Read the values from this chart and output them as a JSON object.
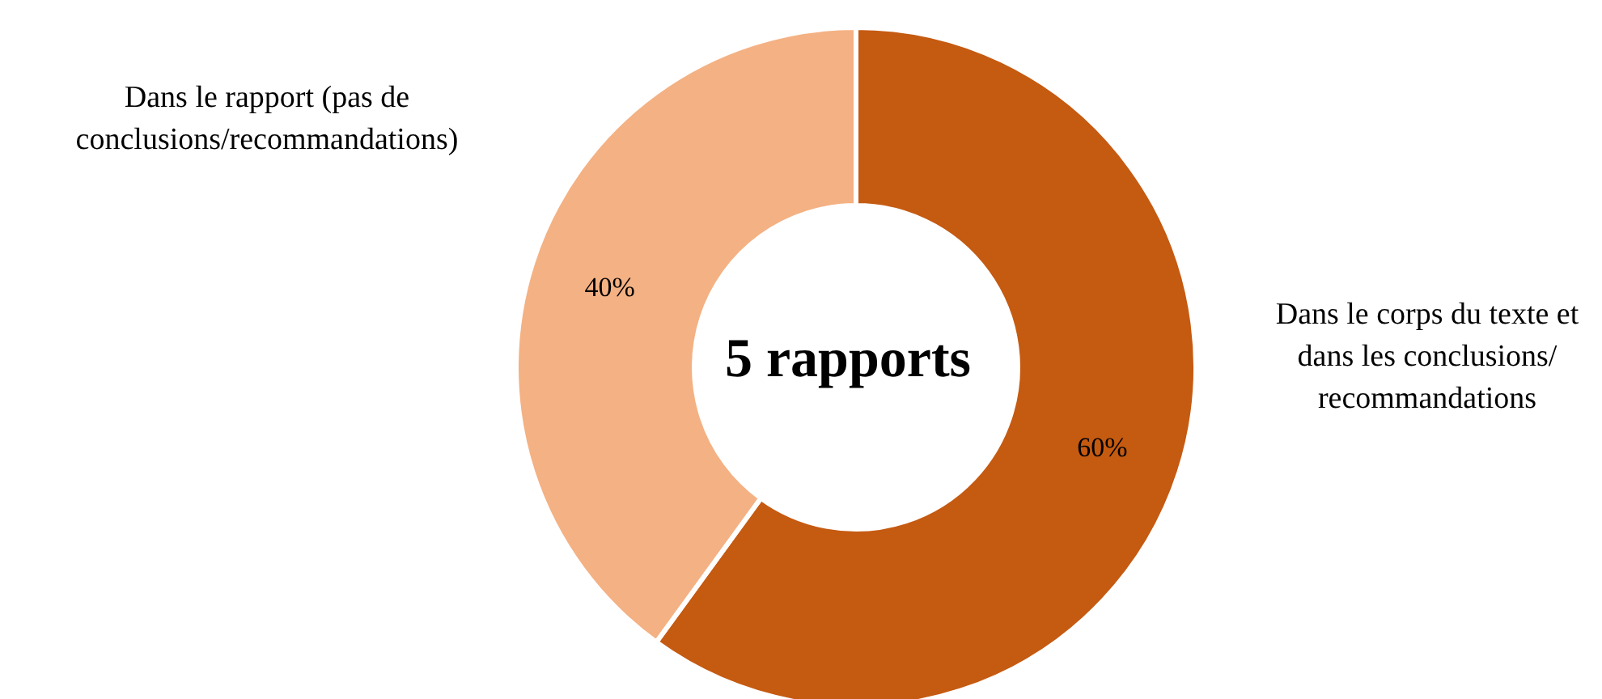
{
  "chart_data": {
    "type": "donut",
    "categories": [
      "Dans le corps du texte et dans les conclusions/ recommandations",
      "Dans le rapport (pas de conclusions/recommandations)"
    ],
    "values": [
      60,
      40
    ],
    "colors": [
      "#c55a11",
      "#f4b183"
    ],
    "value_labels": [
      "60%",
      "40%"
    ],
    "annotations": [
      "5 rapports"
    ],
    "legend": false
  }
}
